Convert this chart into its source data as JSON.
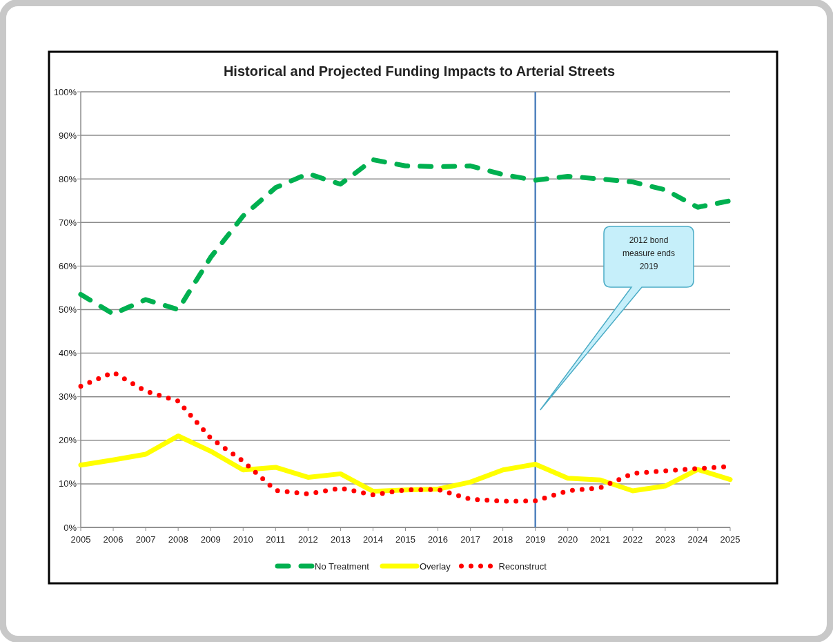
{
  "chart_data": {
    "type": "line",
    "title": "Historical and Projected Funding Impacts to Arterial Streets",
    "x": [
      2005,
      2006,
      2007,
      2008,
      2009,
      2010,
      2011,
      2012,
      2013,
      2014,
      2015,
      2016,
      2017,
      2018,
      2019,
      2020,
      2021,
      2022,
      2023,
      2024,
      2025
    ],
    "series": [
      {
        "name": "No Treatment",
        "color": "#00b050",
        "line_style": "dashed",
        "values": [
          53.5,
          49,
          52.3,
          50,
          62,
          71.5,
          78,
          81.2,
          78.8,
          84.4,
          83,
          82.8,
          83,
          81,
          79.7,
          80.6,
          80,
          79.3,
          77.5,
          73.5,
          75
        ]
      },
      {
        "name": "Overlay",
        "color": "#ffff00",
        "line_style": "solid",
        "values": [
          14.3,
          15.5,
          16.8,
          21,
          17.5,
          13.2,
          13.8,
          11.5,
          12.3,
          8.3,
          8.6,
          8.8,
          10.4,
          13.2,
          14.5,
          11.3,
          10.9,
          8.4,
          9.5,
          13.3,
          11
        ]
      },
      {
        "name": "Reconstruct",
        "color": "#ff0000",
        "line_style": "dotted",
        "values": [
          32.4,
          35.6,
          31.3,
          29,
          20.5,
          15.2,
          8.5,
          7.7,
          9,
          7.5,
          8.6,
          8.7,
          6.5,
          6,
          6.1,
          8.4,
          9.1,
          12.4,
          13,
          13.5,
          14
        ]
      }
    ],
    "xlim": [
      2005,
      2025
    ],
    "xticks": [
      2005,
      2006,
      2007,
      2008,
      2009,
      2010,
      2011,
      2012,
      2013,
      2014,
      2015,
      2016,
      2017,
      2018,
      2019,
      2020,
      2021,
      2022,
      2023,
      2024,
      2025
    ],
    "ylim": [
      0,
      100
    ],
    "yticks": [
      {
        "value": 0,
        "label": "0%"
      },
      {
        "value": 10,
        "label": "10%"
      },
      {
        "value": 20,
        "label": "20%"
      },
      {
        "value": 30,
        "label": "30%"
      },
      {
        "value": 40,
        "label": "40%"
      },
      {
        "value": 50,
        "label": "50%"
      },
      {
        "value": 60,
        "label": "60%"
      },
      {
        "value": 70,
        "label": "70%"
      },
      {
        "value": 80,
        "label": "80%"
      },
      {
        "value": 90,
        "label": "90%"
      },
      {
        "value": 100,
        "label": "100%"
      }
    ],
    "ref_lines": [
      {
        "axis": "x",
        "value": 2019,
        "color": "#4f81bd"
      }
    ],
    "annotations": [
      "2012 bond measure ends 2019"
    ],
    "grid": "y",
    "legend": "bottom",
    "marker": "none"
  }
}
